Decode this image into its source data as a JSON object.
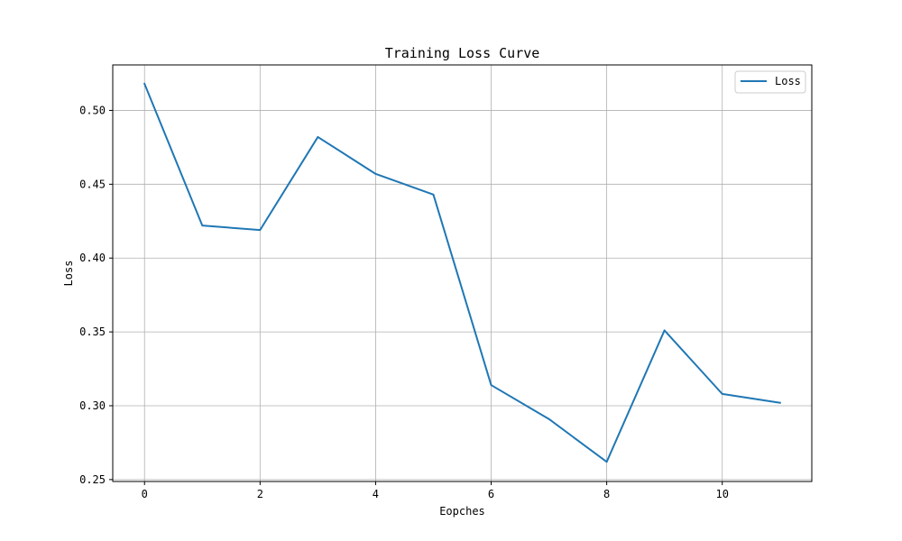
{
  "chart_data": {
    "type": "line",
    "title": "Training Loss Curve",
    "xlabel": "Eopches",
    "ylabel": "Loss",
    "xlim": [
      -0.55,
      11.55
    ],
    "ylim": [
      0.2487,
      0.5308
    ],
    "x_ticks": [
      0,
      2,
      4,
      6,
      8,
      10
    ],
    "x_tick_labels": [
      "0",
      "2",
      "4",
      "6",
      "8",
      "10"
    ],
    "y_ticks": [
      0.25,
      0.3,
      0.35,
      0.4,
      0.45,
      0.5
    ],
    "y_tick_labels": [
      "0.25",
      "0.30",
      "0.35",
      "0.40",
      "0.45",
      "0.50"
    ],
    "grid": true,
    "legend_position": "top-right",
    "x": [
      0,
      1,
      2,
      3,
      4,
      5,
      6,
      7,
      8,
      9,
      10,
      11
    ],
    "series": [
      {
        "name": "Loss",
        "color": "#1f77b4",
        "values": [
          0.518,
          0.422,
          0.419,
          0.482,
          0.457,
          0.443,
          0.314,
          0.291,
          0.262,
          0.351,
          0.308,
          0.302
        ]
      }
    ]
  }
}
